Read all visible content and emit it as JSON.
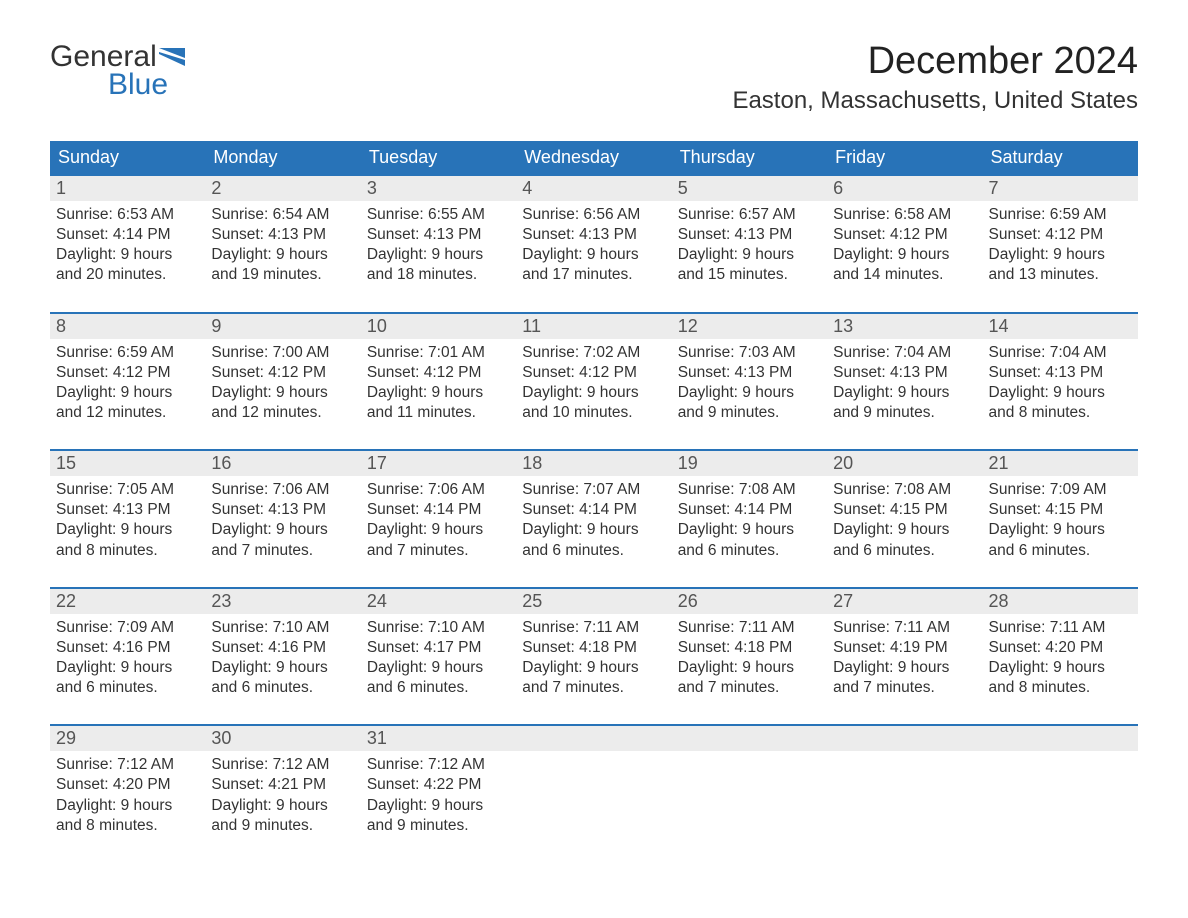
{
  "logo": {
    "text_general": "General",
    "text_blue": "Blue",
    "flag_color": "#2873b8"
  },
  "title": "December 2024",
  "location": "Easton, Massachusetts, United States",
  "colors": {
    "header_bg": "#2873b8",
    "header_text": "#ffffff",
    "daynum_bg": "#ececec",
    "border_top": "#2873b8",
    "text": "#333333",
    "background": "#ffffff"
  },
  "typography": {
    "title_fontsize": 38,
    "location_fontsize": 24,
    "weekday_fontsize": 18,
    "daynum_fontsize": 18,
    "body_fontsize": 15.5
  },
  "weekdays": [
    "Sunday",
    "Monday",
    "Tuesday",
    "Wednesday",
    "Thursday",
    "Friday",
    "Saturday"
  ],
  "weeks": [
    [
      {
        "num": "1",
        "sunrise": "Sunrise: 6:53 AM",
        "sunset": "Sunset: 4:14 PM",
        "daylight1": "Daylight: 9 hours",
        "daylight2": "and 20 minutes."
      },
      {
        "num": "2",
        "sunrise": "Sunrise: 6:54 AM",
        "sunset": "Sunset: 4:13 PM",
        "daylight1": "Daylight: 9 hours",
        "daylight2": "and 19 minutes."
      },
      {
        "num": "3",
        "sunrise": "Sunrise: 6:55 AM",
        "sunset": "Sunset: 4:13 PM",
        "daylight1": "Daylight: 9 hours",
        "daylight2": "and 18 minutes."
      },
      {
        "num": "4",
        "sunrise": "Sunrise: 6:56 AM",
        "sunset": "Sunset: 4:13 PM",
        "daylight1": "Daylight: 9 hours",
        "daylight2": "and 17 minutes."
      },
      {
        "num": "5",
        "sunrise": "Sunrise: 6:57 AM",
        "sunset": "Sunset: 4:13 PM",
        "daylight1": "Daylight: 9 hours",
        "daylight2": "and 15 minutes."
      },
      {
        "num": "6",
        "sunrise": "Sunrise: 6:58 AM",
        "sunset": "Sunset: 4:12 PM",
        "daylight1": "Daylight: 9 hours",
        "daylight2": "and 14 minutes."
      },
      {
        "num": "7",
        "sunrise": "Sunrise: 6:59 AM",
        "sunset": "Sunset: 4:12 PM",
        "daylight1": "Daylight: 9 hours",
        "daylight2": "and 13 minutes."
      }
    ],
    [
      {
        "num": "8",
        "sunrise": "Sunrise: 6:59 AM",
        "sunset": "Sunset: 4:12 PM",
        "daylight1": "Daylight: 9 hours",
        "daylight2": "and 12 minutes."
      },
      {
        "num": "9",
        "sunrise": "Sunrise: 7:00 AM",
        "sunset": "Sunset: 4:12 PM",
        "daylight1": "Daylight: 9 hours",
        "daylight2": "and 12 minutes."
      },
      {
        "num": "10",
        "sunrise": "Sunrise: 7:01 AM",
        "sunset": "Sunset: 4:12 PM",
        "daylight1": "Daylight: 9 hours",
        "daylight2": "and 11 minutes."
      },
      {
        "num": "11",
        "sunrise": "Sunrise: 7:02 AM",
        "sunset": "Sunset: 4:12 PM",
        "daylight1": "Daylight: 9 hours",
        "daylight2": "and 10 minutes."
      },
      {
        "num": "12",
        "sunrise": "Sunrise: 7:03 AM",
        "sunset": "Sunset: 4:13 PM",
        "daylight1": "Daylight: 9 hours",
        "daylight2": "and 9 minutes."
      },
      {
        "num": "13",
        "sunrise": "Sunrise: 7:04 AM",
        "sunset": "Sunset: 4:13 PM",
        "daylight1": "Daylight: 9 hours",
        "daylight2": "and 9 minutes."
      },
      {
        "num": "14",
        "sunrise": "Sunrise: 7:04 AM",
        "sunset": "Sunset: 4:13 PM",
        "daylight1": "Daylight: 9 hours",
        "daylight2": "and 8 minutes."
      }
    ],
    [
      {
        "num": "15",
        "sunrise": "Sunrise: 7:05 AM",
        "sunset": "Sunset: 4:13 PM",
        "daylight1": "Daylight: 9 hours",
        "daylight2": "and 8 minutes."
      },
      {
        "num": "16",
        "sunrise": "Sunrise: 7:06 AM",
        "sunset": "Sunset: 4:13 PM",
        "daylight1": "Daylight: 9 hours",
        "daylight2": "and 7 minutes."
      },
      {
        "num": "17",
        "sunrise": "Sunrise: 7:06 AM",
        "sunset": "Sunset: 4:14 PM",
        "daylight1": "Daylight: 9 hours",
        "daylight2": "and 7 minutes."
      },
      {
        "num": "18",
        "sunrise": "Sunrise: 7:07 AM",
        "sunset": "Sunset: 4:14 PM",
        "daylight1": "Daylight: 9 hours",
        "daylight2": "and 6 minutes."
      },
      {
        "num": "19",
        "sunrise": "Sunrise: 7:08 AM",
        "sunset": "Sunset: 4:14 PM",
        "daylight1": "Daylight: 9 hours",
        "daylight2": "and 6 minutes."
      },
      {
        "num": "20",
        "sunrise": "Sunrise: 7:08 AM",
        "sunset": "Sunset: 4:15 PM",
        "daylight1": "Daylight: 9 hours",
        "daylight2": "and 6 minutes."
      },
      {
        "num": "21",
        "sunrise": "Sunrise: 7:09 AM",
        "sunset": "Sunset: 4:15 PM",
        "daylight1": "Daylight: 9 hours",
        "daylight2": "and 6 minutes."
      }
    ],
    [
      {
        "num": "22",
        "sunrise": "Sunrise: 7:09 AM",
        "sunset": "Sunset: 4:16 PM",
        "daylight1": "Daylight: 9 hours",
        "daylight2": "and 6 minutes."
      },
      {
        "num": "23",
        "sunrise": "Sunrise: 7:10 AM",
        "sunset": "Sunset: 4:16 PM",
        "daylight1": "Daylight: 9 hours",
        "daylight2": "and 6 minutes."
      },
      {
        "num": "24",
        "sunrise": "Sunrise: 7:10 AM",
        "sunset": "Sunset: 4:17 PM",
        "daylight1": "Daylight: 9 hours",
        "daylight2": "and 6 minutes."
      },
      {
        "num": "25",
        "sunrise": "Sunrise: 7:11 AM",
        "sunset": "Sunset: 4:18 PM",
        "daylight1": "Daylight: 9 hours",
        "daylight2": "and 7 minutes."
      },
      {
        "num": "26",
        "sunrise": "Sunrise: 7:11 AM",
        "sunset": "Sunset: 4:18 PM",
        "daylight1": "Daylight: 9 hours",
        "daylight2": "and 7 minutes."
      },
      {
        "num": "27",
        "sunrise": "Sunrise: 7:11 AM",
        "sunset": "Sunset: 4:19 PM",
        "daylight1": "Daylight: 9 hours",
        "daylight2": "and 7 minutes."
      },
      {
        "num": "28",
        "sunrise": "Sunrise: 7:11 AM",
        "sunset": "Sunset: 4:20 PM",
        "daylight1": "Daylight: 9 hours",
        "daylight2": "and 8 minutes."
      }
    ],
    [
      {
        "num": "29",
        "sunrise": "Sunrise: 7:12 AM",
        "sunset": "Sunset: 4:20 PM",
        "daylight1": "Daylight: 9 hours",
        "daylight2": "and 8 minutes."
      },
      {
        "num": "30",
        "sunrise": "Sunrise: 7:12 AM",
        "sunset": "Sunset: 4:21 PM",
        "daylight1": "Daylight: 9 hours",
        "daylight2": "and 9 minutes."
      },
      {
        "num": "31",
        "sunrise": "Sunrise: 7:12 AM",
        "sunset": "Sunset: 4:22 PM",
        "daylight1": "Daylight: 9 hours",
        "daylight2": "and 9 minutes."
      },
      {
        "empty": true
      },
      {
        "empty": true
      },
      {
        "empty": true
      },
      {
        "empty": true
      }
    ]
  ]
}
